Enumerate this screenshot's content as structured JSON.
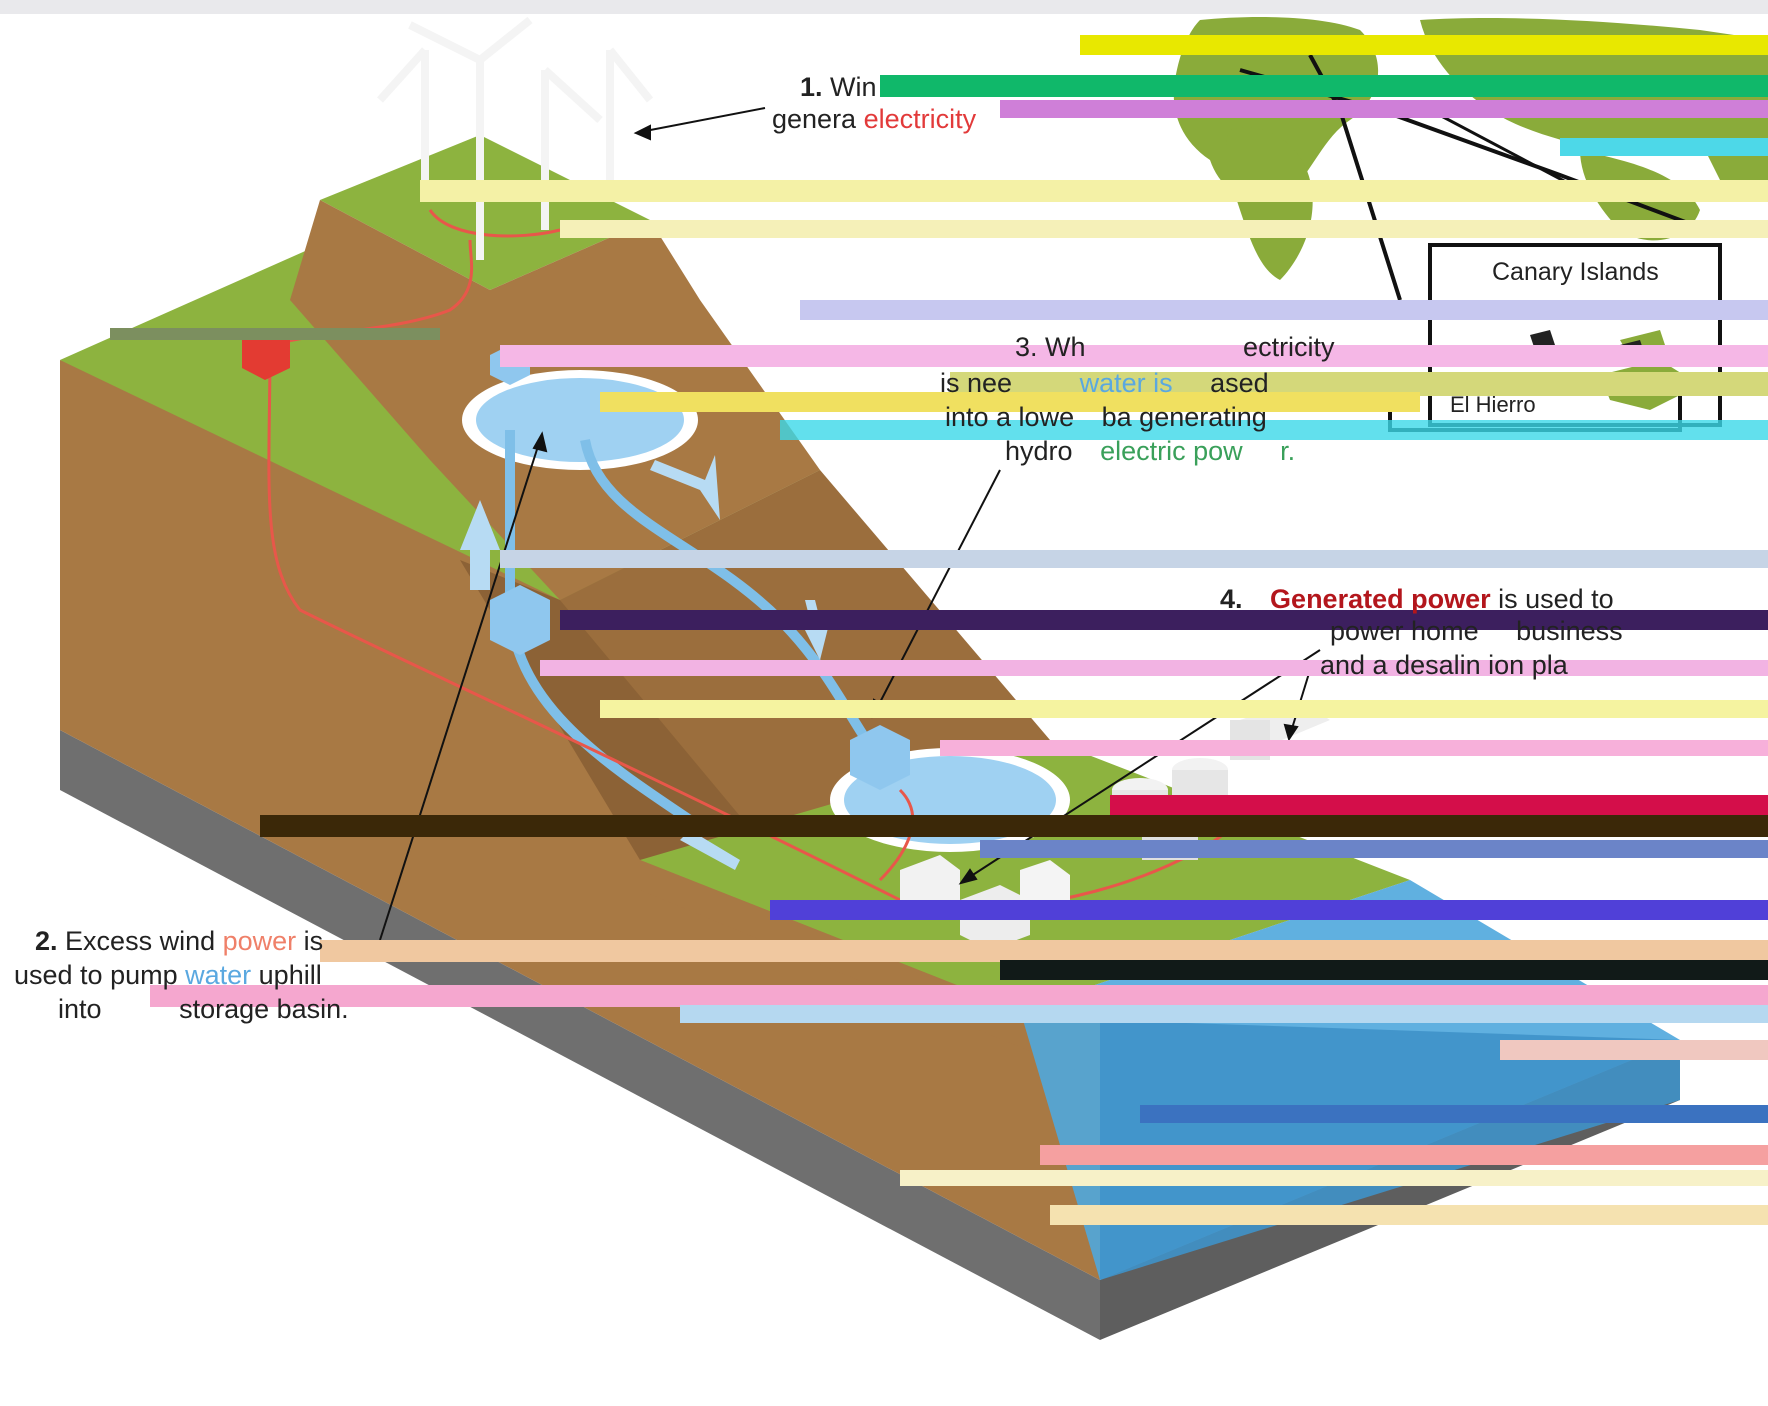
{
  "colors": {
    "grass": "#8db33f",
    "soil": "#a87944",
    "soil_dark": "#8c6236",
    "bedrock": "#6f6f6f",
    "water_basin": "#9fd1f2",
    "sea": "#4fa7dd",
    "cable": "#e8574a",
    "substation": "#e33b32",
    "map_land": "#8aab3a"
  },
  "labels": {
    "step1": {
      "num": "1.",
      "t1": "Win",
      "t2": "genera",
      "t3": "electricity"
    },
    "step2": {
      "num": "2.",
      "t1": "Excess wind ",
      "t2": "power",
      "t3": " is",
      "t4": "used to pump ",
      "t5": "water",
      "t6": " uphill",
      "t7": "into",
      "t8": "storage basin."
    },
    "step3": {
      "t1": "3. Wh",
      "t2": "ectricity",
      "t3": "is nee",
      "t4": "water is",
      "t5": "ased",
      "t6": "into a lowe",
      "t7": "ba",
      "t8": "generating",
      "t9": "hydro",
      "t10": "electric ",
      "t11": "pow",
      "t12": "r."
    },
    "step4": {
      "num": "4.",
      "t1": "Generated power",
      "t2": " is used to",
      "t3": "power home",
      "t4": "business",
      "t5": "and a desalin",
      "t6": "ion pla"
    }
  },
  "map": {
    "canary_label": "Canary Islands",
    "island_label": "El Hierro"
  }
}
